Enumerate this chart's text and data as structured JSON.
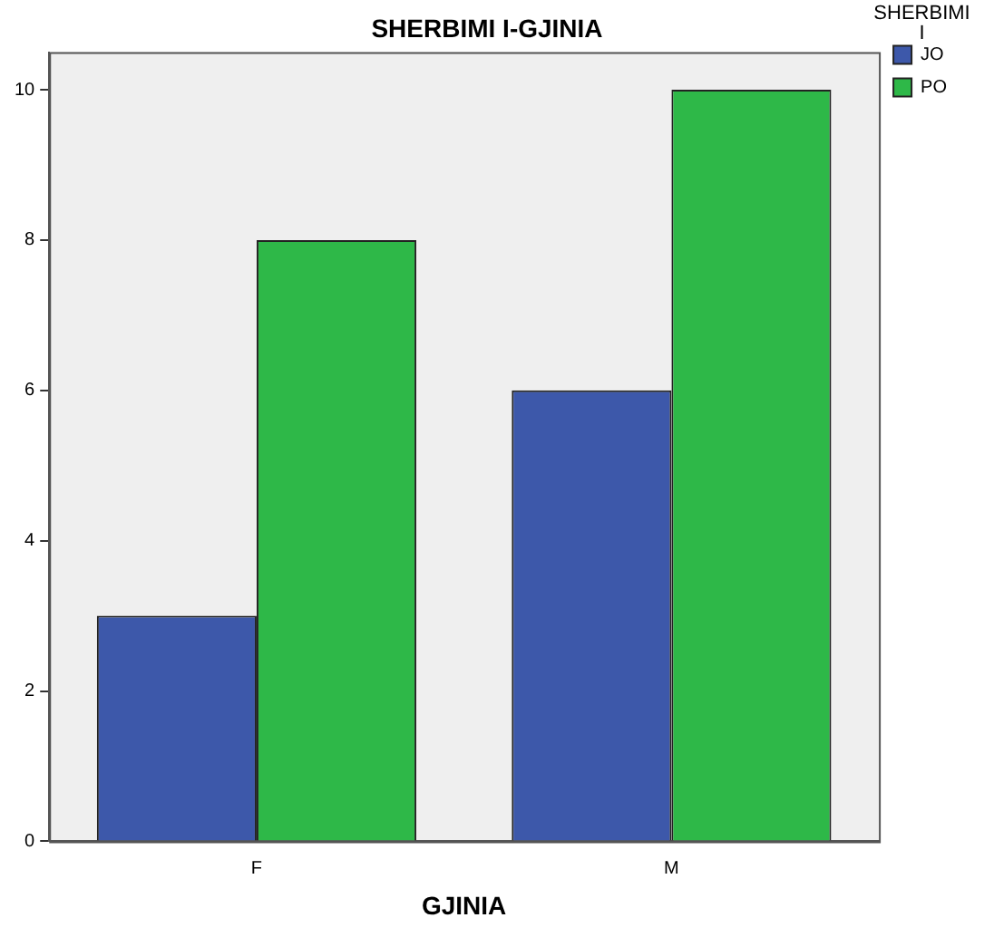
{
  "chart_data": {
    "type": "bar",
    "title": "SHERBIMI I-GJINIA",
    "xlabel": "GJINIA",
    "legend_title": "SHERBIMI I",
    "categories": [
      "F",
      "M"
    ],
    "series": [
      {
        "name": "JO",
        "color": "#3d58aa",
        "values": [
          3,
          6
        ]
      },
      {
        "name": "PO",
        "color": "#2eb848",
        "values": [
          8,
          10
        ]
      }
    ],
    "ylim": [
      0,
      10.5
    ],
    "yticks": [
      0,
      2,
      4,
      6,
      8,
      10
    ],
    "grid": false,
    "legend": "right"
  }
}
